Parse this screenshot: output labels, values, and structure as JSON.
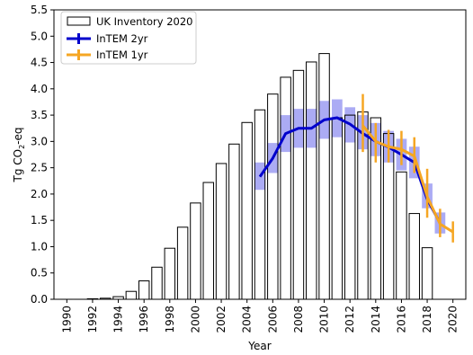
{
  "chart_data": {
    "type": "bar",
    "title": "",
    "xlabel": "Year",
    "ylabel_main": "Tg CO",
    "ylabel_sub": "2",
    "ylabel_tail": "-eq",
    "xlim": [
      1989,
      2021
    ],
    "ylim": [
      0,
      5.5
    ],
    "yticks": [
      0.0,
      0.5,
      1.0,
      1.5,
      2.0,
      2.5,
      3.0,
      3.5,
      4.0,
      4.5,
      5.0,
      5.5
    ],
    "ytick_labels": [
      "0.0",
      "0.5",
      "1.0",
      "1.5",
      "2.0",
      "2.5",
      "3.0",
      "3.5",
      "4.0",
      "4.5",
      "5.0",
      "5.5"
    ],
    "xticks": [
      1990,
      1992,
      1994,
      1996,
      1998,
      2000,
      2002,
      2004,
      2006,
      2008,
      2010,
      2012,
      2014,
      2016,
      2018,
      2020
    ],
    "xtick_labels": [
      "1990",
      "1992",
      "1994",
      "1996",
      "1998",
      "2000",
      "2002",
      "2004",
      "2006",
      "2008",
      "2010",
      "2012",
      "2014",
      "2016",
      "2018",
      "2020"
    ],
    "grid": false,
    "legend_position": "top-left",
    "series": [
      {
        "name": "UK Inventory 2020",
        "kind": "bar",
        "color": "#000000",
        "x": [
          1990,
          1991,
          1992,
          1993,
          1994,
          1995,
          1996,
          1997,
          1998,
          1999,
          2000,
          2001,
          2002,
          2003,
          2004,
          2005,
          2006,
          2007,
          2008,
          2009,
          2010,
          2011,
          2012,
          2013,
          2014,
          2015,
          2016,
          2017,
          2018
        ],
        "values": [
          0.0,
          0.0,
          0.01,
          0.02,
          0.05,
          0.15,
          0.35,
          0.61,
          0.97,
          1.37,
          1.83,
          2.22,
          2.58,
          2.95,
          3.36,
          3.6,
          3.9,
          4.22,
          4.35,
          4.51,
          4.67,
          3.45,
          3.5,
          3.56,
          3.45,
          3.15,
          2.42,
          1.63,
          0.98
        ]
      },
      {
        "name": "InTEM 2yr",
        "kind": "line",
        "color": "#0000cc",
        "band_color": "#8f8ff0",
        "x": [
          2005,
          2006,
          2007,
          2008,
          2009,
          2010,
          2011,
          2012,
          2013,
          2014,
          2015,
          2016,
          2017,
          2018,
          2019
        ],
        "values": [
          2.33,
          2.68,
          3.15,
          3.25,
          3.25,
          3.41,
          3.45,
          3.33,
          3.15,
          3.0,
          2.89,
          2.75,
          2.6,
          1.9,
          1.45
        ],
        "lower": [
          2.08,
          2.4,
          2.8,
          2.88,
          2.88,
          3.05,
          3.08,
          2.98,
          2.85,
          2.72,
          2.6,
          2.45,
          2.3,
          1.73,
          1.25
        ],
        "upper": [
          2.6,
          2.97,
          3.5,
          3.62,
          3.62,
          3.77,
          3.8,
          3.65,
          3.5,
          3.35,
          3.2,
          3.05,
          2.9,
          2.2,
          1.65
        ]
      },
      {
        "name": "InTEM 1yr",
        "kind": "line",
        "color": "#f5a623",
        "x": [
          2013,
          2014,
          2015,
          2016,
          2017,
          2018,
          2019,
          2020
        ],
        "values": [
          3.3,
          3.0,
          2.9,
          2.85,
          2.72,
          1.95,
          1.43,
          1.28
        ],
        "lower": [
          2.8,
          2.6,
          2.6,
          2.55,
          2.4,
          1.55,
          1.18,
          1.08
        ],
        "upper": [
          3.9,
          3.35,
          3.22,
          3.2,
          3.08,
          2.48,
          1.72,
          1.48
        ]
      }
    ]
  }
}
